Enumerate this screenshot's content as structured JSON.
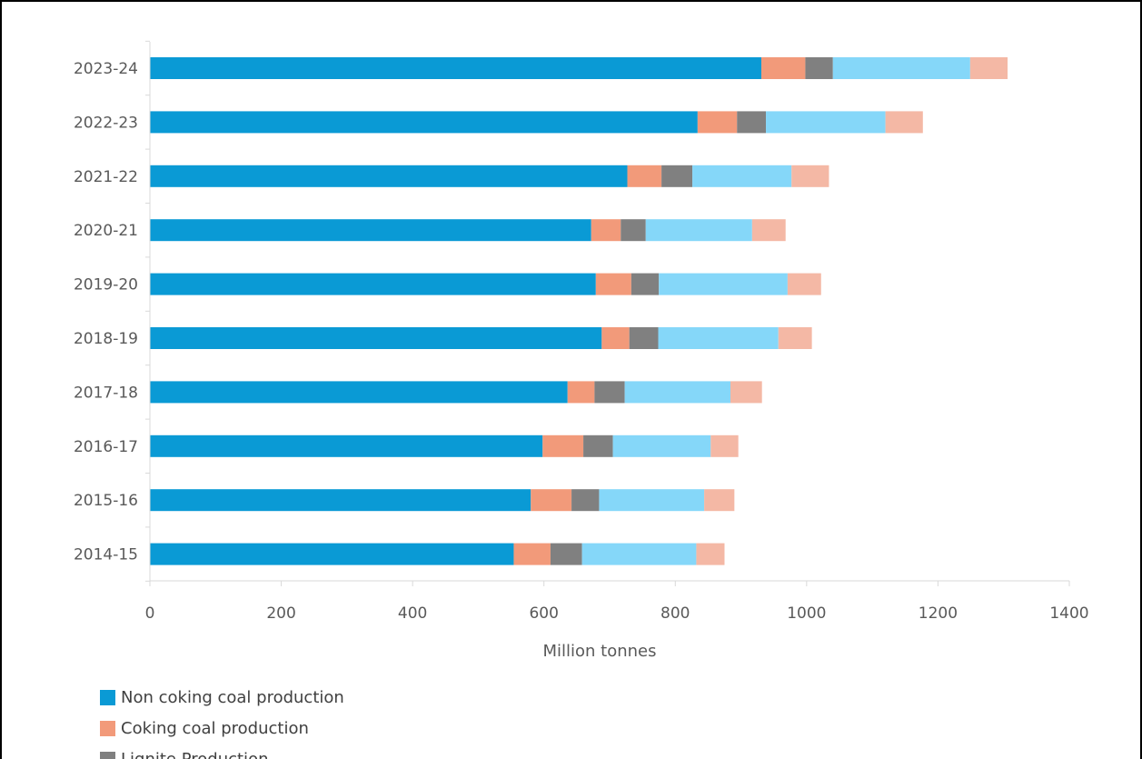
{
  "chart_data": {
    "type": "bar",
    "orientation": "horizontal",
    "stacked": true,
    "categories": [
      "2023-24",
      "2022-23",
      "2021-22",
      "2020-21",
      "2019-20",
      "2018-19",
      "2017-18",
      "2016-17",
      "2015-16",
      "2014-15"
    ],
    "series": [
      {
        "name": "Non coking coal production",
        "color": "#0a9ad5",
        "values": [
          931,
          834,
          727,
          672,
          679,
          688,
          636,
          598,
          580,
          554
        ]
      },
      {
        "name": "Coking coal production",
        "color": "#f29a7a",
        "values": [
          67,
          60,
          52,
          45,
          54,
          42,
          41,
          62,
          62,
          56
        ]
      },
      {
        "name": "Lignite Production",
        "color": "#808080",
        "values": [
          42,
          44,
          47,
          38,
          42,
          44,
          46,
          45,
          42,
          48
        ]
      },
      {
        "color": "#85d7f9",
        "values": [
          209,
          182,
          151,
          162,
          196,
          183,
          161,
          149,
          160,
          174
        ]
      },
      {
        "color": "#f4b8a5",
        "values": [
          57,
          57,
          57,
          51,
          51,
          51,
          48,
          42,
          46,
          43
        ]
      }
    ],
    "xlabel": "Million tonnes",
    "ylabel": "",
    "xlim": [
      0,
      1400
    ],
    "xticks": [
      0,
      200,
      400,
      600,
      800,
      1000,
      1200,
      1400
    ],
    "grid": false,
    "legend_position": "bottom"
  }
}
